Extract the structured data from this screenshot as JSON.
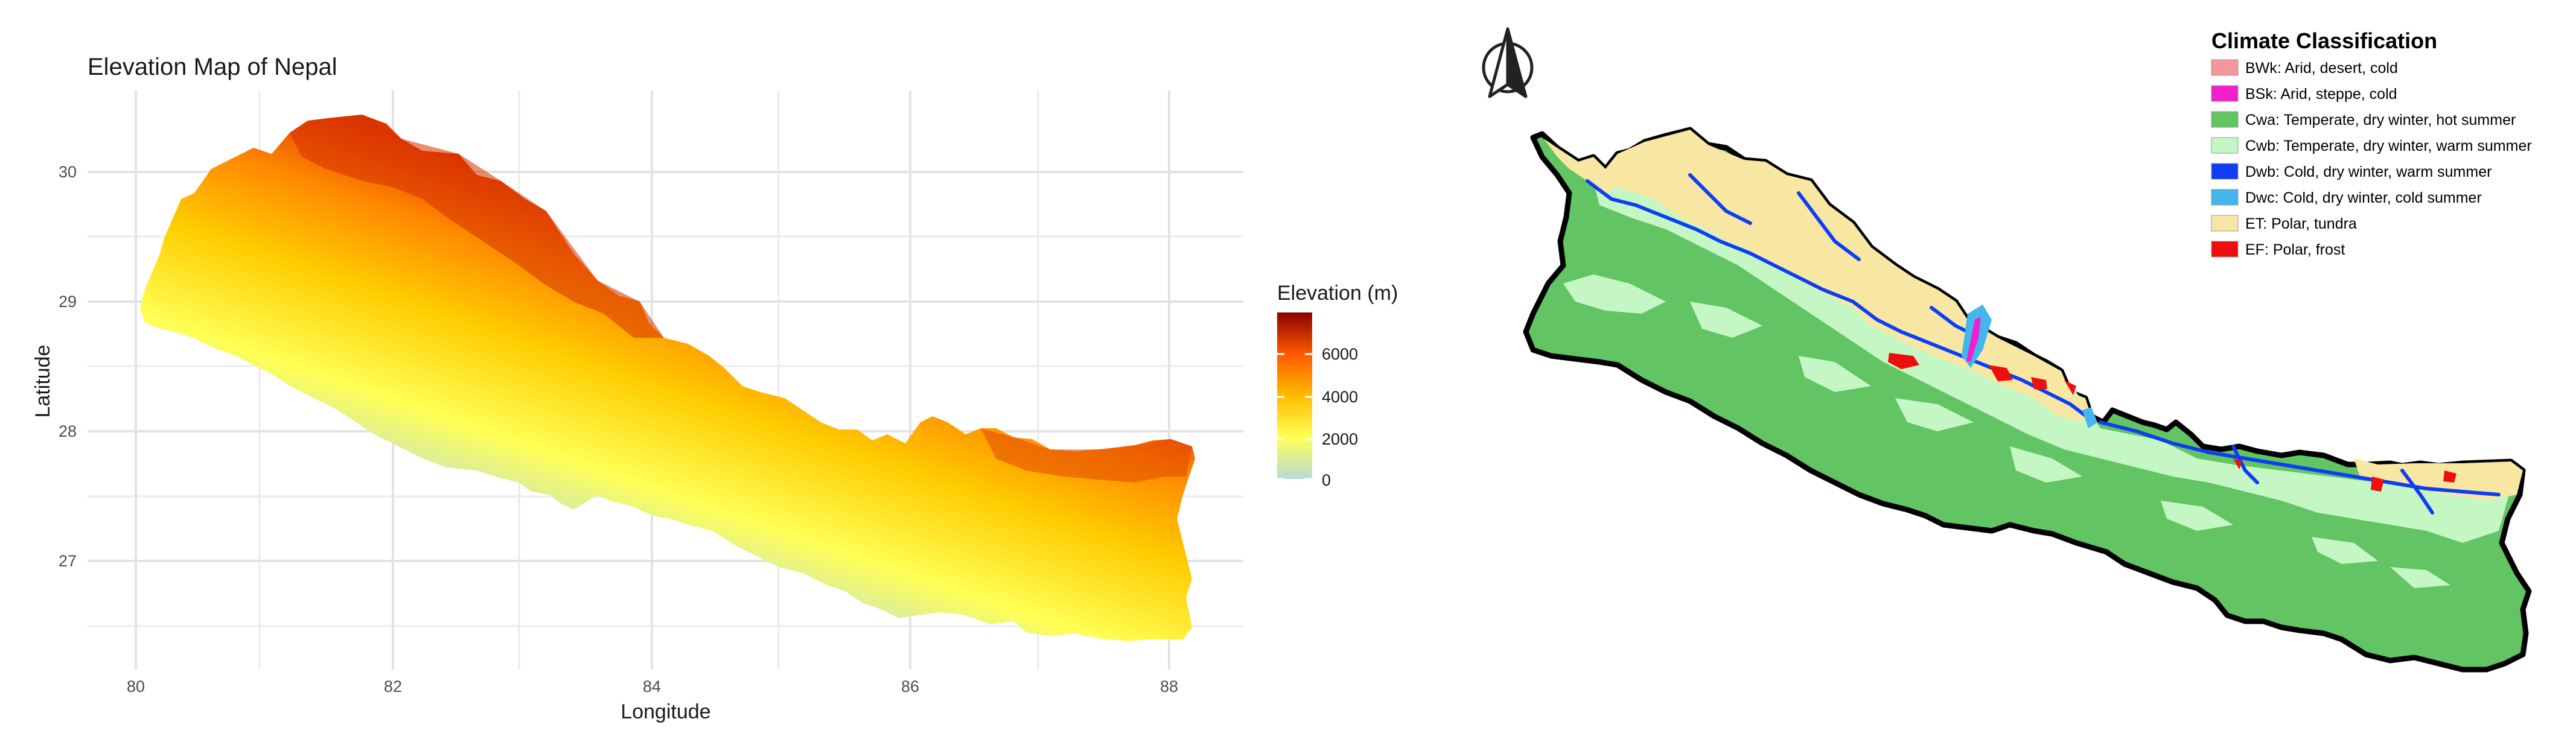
{
  "elevation_map": {
    "title": "Elevation Map of Nepal",
    "xlabel": "Longitude",
    "ylabel": "Latitude",
    "x_ticks": [
      "80",
      "82",
      "84",
      "86",
      "88"
    ],
    "y_ticks": [
      "30",
      "29",
      "28",
      "27"
    ],
    "legend": {
      "title": "Elevation (m)",
      "ticks": [
        "6000",
        "4000",
        "2000",
        "0"
      ]
    },
    "color_scale": [
      "#b6dbd6",
      "#ffff55",
      "#ffcc00",
      "#ff7b00",
      "#d92000",
      "#8a0000"
    ]
  },
  "climate_map": {
    "north_arrow": "north-arrow-icon",
    "legend_title": "Climate Classification",
    "classes": [
      {
        "label": "BWk: Arid, desert, cold",
        "color": "#f4979c"
      },
      {
        "label": "BSk: Arid, steppe, cold",
        "color": "#f11fcd"
      },
      {
        "label": "Cwa: Temperate, dry winter, hot summer",
        "color": "#62c462"
      },
      {
        "label": "Cwb: Temperate, dry winter, warm summer",
        "color": "#c4f7c4"
      },
      {
        "label": "Dwb: Cold, dry winter, warm summer",
        "color": "#0d3df5"
      },
      {
        "label": "Dwc: Cold, dry winter, cold summer",
        "color": "#43b6ee"
      },
      {
        "label": "ET: Polar, tundra",
        "color": "#f8e7a3"
      },
      {
        "label": "EF: Polar, frost",
        "color": "#ee0e0e"
      }
    ]
  }
}
